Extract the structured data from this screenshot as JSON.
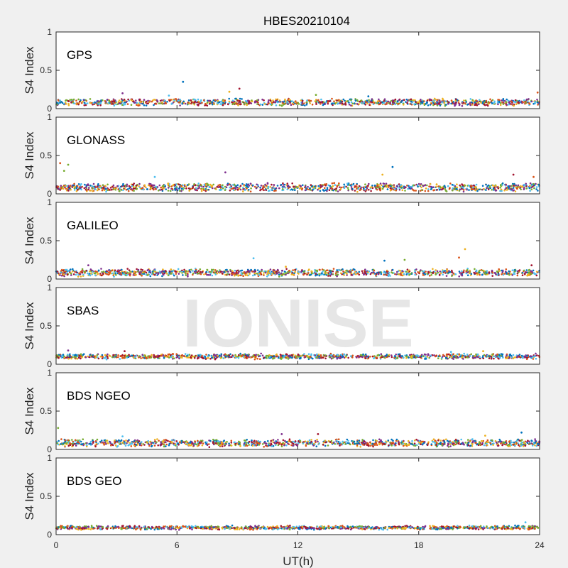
{
  "figure": {
    "title": "HBES20210104",
    "xlabel": "UT(h)",
    "watermark": "IONISE"
  },
  "colors": {
    "background": "#f0f0f0",
    "axes_bg": "#ffffff",
    "axis": "#262626",
    "watermark": "#e6e6e6",
    "series": [
      "#0072BD",
      "#D95319",
      "#EDB120",
      "#7E2F8E",
      "#77AC30",
      "#4DBEEE",
      "#A2142F"
    ]
  },
  "chart_data": [
    {
      "type": "scatter",
      "panel_label": "GPS",
      "ylabel": "S4 Index",
      "xlim": [
        0,
        24
      ],
      "ylim": [
        0,
        1
      ],
      "xticks": [
        0,
        6,
        12,
        18,
        24
      ],
      "yticks": [
        0,
        0.5,
        1
      ],
      "ytick_labels": [
        "0",
        "0.5",
        "1"
      ],
      "grid": false,
      "baseline_s4": 0.08,
      "spread": 0.06,
      "spikes": [
        [
          6.3,
          0.35
        ],
        [
          3.3,
          0.2
        ],
        [
          9.1,
          0.26
        ],
        [
          8.6,
          0.22
        ],
        [
          5.6,
          0.17
        ],
        [
          23.9,
          0.21
        ],
        [
          12.9,
          0.18
        ],
        [
          15.5,
          0.16
        ]
      ]
    },
    {
      "type": "scatter",
      "panel_label": "GLONASS",
      "ylabel": "S4 Index",
      "xlim": [
        0,
        24
      ],
      "ylim": [
        0,
        1
      ],
      "xticks": [
        0,
        6,
        12,
        18,
        24
      ],
      "yticks": [
        0,
        0.5,
        1
      ],
      "ytick_labels": [
        "0",
        "0.5",
        "1"
      ],
      "grid": false,
      "baseline_s4": 0.08,
      "spread": 0.08,
      "spikes": [
        [
          0.2,
          0.4
        ],
        [
          0.6,
          0.38
        ],
        [
          16.7,
          0.35
        ],
        [
          8.4,
          0.28
        ],
        [
          22.7,
          0.25
        ],
        [
          16.2,
          0.25
        ],
        [
          4.9,
          0.22
        ],
        [
          23.7,
          0.22
        ],
        [
          0.4,
          0.3
        ]
      ]
    },
    {
      "type": "scatter",
      "panel_label": "GALILEO",
      "ylabel": "S4 Index",
      "xlim": [
        0,
        24
      ],
      "ylim": [
        0,
        1
      ],
      "xticks": [
        0,
        6,
        12,
        18,
        24
      ],
      "yticks": [
        0,
        0.5,
        1
      ],
      "ytick_labels": [
        "0",
        "0.5",
        "1"
      ],
      "grid": false,
      "baseline_s4": 0.08,
      "spread": 0.07,
      "spikes": [
        [
          20.3,
          0.39
        ],
        [
          9.8,
          0.27
        ],
        [
          20.0,
          0.28
        ],
        [
          17.3,
          0.25
        ],
        [
          16.3,
          0.24
        ],
        [
          1.6,
          0.18
        ],
        [
          23.6,
          0.18
        ],
        [
          11.4,
          0.16
        ]
      ]
    },
    {
      "type": "scatter",
      "panel_label": "SBAS",
      "ylabel": "S4 Index",
      "xlim": [
        0,
        24
      ],
      "ylim": [
        0,
        1
      ],
      "xticks": [
        0,
        6,
        12,
        18,
        24
      ],
      "yticks": [
        0,
        0.5,
        1
      ],
      "ytick_labels": [
        "0",
        "0.5",
        "1"
      ],
      "grid": false,
      "baseline_s4": 0.1,
      "spread": 0.04,
      "spikes": [
        [
          0.6,
          0.18
        ],
        [
          3.4,
          0.17
        ],
        [
          21.2,
          0.17
        ],
        [
          19.6,
          0.16
        ]
      ]
    },
    {
      "type": "scatter",
      "panel_label": "BDS NGEO",
      "ylabel": "S4 Index",
      "xlim": [
        0,
        24
      ],
      "ylim": [
        0,
        1
      ],
      "xticks": [
        0,
        6,
        12,
        18,
        24
      ],
      "yticks": [
        0,
        0.5,
        1
      ],
      "ytick_labels": [
        "0",
        "0.5",
        "1"
      ],
      "grid": false,
      "baseline_s4": 0.08,
      "spread": 0.07,
      "spikes": [
        [
          0.1,
          0.28
        ],
        [
          23.1,
          0.22
        ],
        [
          11.2,
          0.2
        ],
        [
          13.0,
          0.2
        ],
        [
          21.3,
          0.18
        ],
        [
          3.3,
          0.17
        ]
      ]
    },
    {
      "type": "scatter",
      "panel_label": "BDS GEO",
      "ylabel": "S4 Index",
      "xlim": [
        0,
        24
      ],
      "ylim": [
        0,
        1
      ],
      "xticks": [
        0,
        6,
        12,
        18,
        24
      ],
      "yticks": [
        0,
        0.5,
        1
      ],
      "ytick_labels": [
        "0",
        "0.5",
        "1"
      ],
      "grid": false,
      "baseline_s4": 0.09,
      "spread": 0.02,
      "spikes": [
        [
          23.3,
          0.16
        ]
      ]
    }
  ]
}
